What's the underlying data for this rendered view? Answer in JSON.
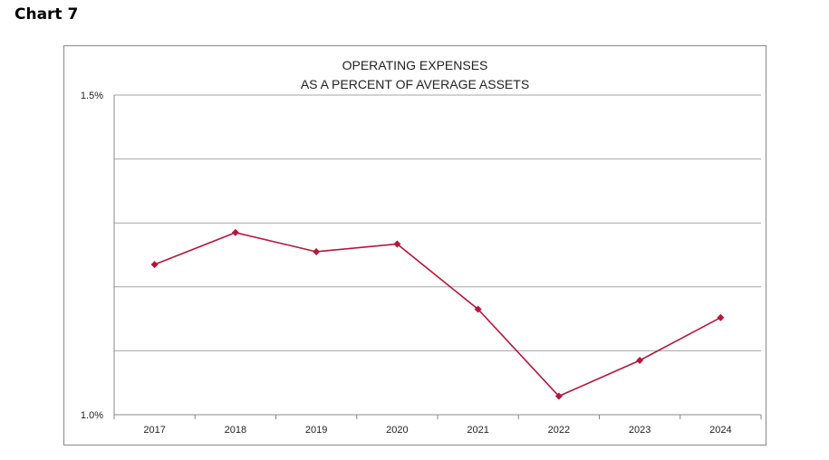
{
  "page": {
    "heading": "Chart 7"
  },
  "chart_data": {
    "type": "line",
    "title_lines": [
      "OPERATING  EXPENSES",
      "AS A PERCENT  OF AVERAGE  ASSETS"
    ],
    "categories": [
      "2017",
      "2018",
      "2019",
      "2020",
      "2021",
      "2022",
      "2023",
      "2024"
    ],
    "series": [
      {
        "values": [
          1.235,
          1.285,
          1.255,
          1.267,
          1.165,
          1.029,
          1.085,
          1.152
        ]
      }
    ],
    "ylim": [
      1.0,
      1.5
    ],
    "y_tick_labels": {
      "1.5": "1.5%",
      "1.0": "1.0%"
    },
    "gridlines": [
      1.5,
      1.4,
      1.3,
      1.2,
      1.1
    ],
    "grid": true,
    "legend": "none",
    "line_color": "#b5163a",
    "grid_color": "#a6a6a6"
  }
}
